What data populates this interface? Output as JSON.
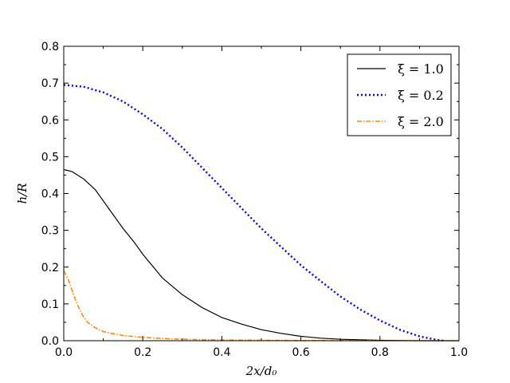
{
  "chart_data": {
    "type": "line",
    "title": "",
    "xlabel": "2x/d₀",
    "ylabel": "h/R",
    "xlim": [
      0,
      1
    ],
    "ylim": [
      0,
      0.8
    ],
    "xticks": [
      "0.0",
      "0.2",
      "0.4",
      "0.6",
      "0.8",
      "1.0"
    ],
    "yticks": [
      "0.0",
      "0.1",
      "0.2",
      "0.3",
      "0.4",
      "0.5",
      "0.6",
      "0.7",
      "0.8"
    ],
    "grid": false,
    "legend_position": "top-right",
    "series": [
      {
        "name": "ξ = 1.0",
        "color": "#000000",
        "style": "solid",
        "x": [
          0,
          0.02,
          0.05,
          0.08,
          0.1,
          0.12,
          0.15,
          0.18,
          0.2,
          0.25,
          0.3,
          0.35,
          0.4,
          0.45,
          0.5,
          0.55,
          0.6,
          0.65,
          0.7,
          0.8,
          0.9,
          1.0
        ],
        "y": [
          0.465,
          0.46,
          0.44,
          0.41,
          0.38,
          0.35,
          0.305,
          0.265,
          0.235,
          0.17,
          0.125,
          0.09,
          0.063,
          0.045,
          0.03,
          0.02,
          0.012,
          0.007,
          0.004,
          0.001,
          0.0,
          0.0
        ]
      },
      {
        "name": "ξ = 0.2",
        "color": "#0000ff",
        "style": "dotted",
        "x": [
          0,
          0.05,
          0.1,
          0.15,
          0.2,
          0.25,
          0.3,
          0.35,
          0.4,
          0.45,
          0.5,
          0.55,
          0.6,
          0.65,
          0.7,
          0.75,
          0.8,
          0.85,
          0.9,
          0.94,
          0.96
        ],
        "y": [
          0.695,
          0.69,
          0.675,
          0.65,
          0.615,
          0.575,
          0.525,
          0.47,
          0.415,
          0.36,
          0.305,
          0.255,
          0.205,
          0.162,
          0.12,
          0.085,
          0.055,
          0.03,
          0.012,
          0.003,
          0.0
        ]
      },
      {
        "name": "ξ = 2.0",
        "color": "#ff8c00",
        "style": "dashdot",
        "x": [
          0,
          0.01,
          0.02,
          0.03,
          0.04,
          0.05,
          0.06,
          0.08,
          0.1,
          0.12,
          0.15,
          0.2,
          0.25,
          0.3,
          0.4,
          0.5,
          0.6,
          0.8,
          1.0
        ],
        "y": [
          0.19,
          0.17,
          0.14,
          0.11,
          0.085,
          0.065,
          0.05,
          0.035,
          0.025,
          0.02,
          0.014,
          0.009,
          0.006,
          0.004,
          0.002,
          0.001,
          0.0005,
          0.0,
          0.0
        ]
      }
    ]
  }
}
